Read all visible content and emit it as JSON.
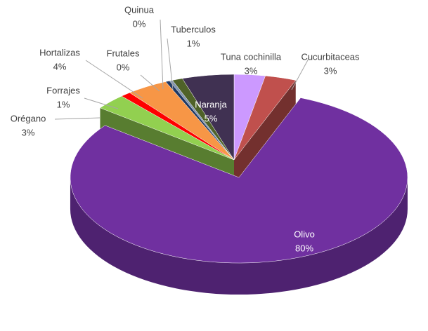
{
  "chart_data": {
    "type": "pie3d",
    "categories": [
      "Tuna cochinilla",
      "Cucurbitaceas",
      "Olivo",
      "Orégano",
      "Forrajes",
      "Hortalizas",
      "Frutales",
      "Quinua",
      "Tuberculos",
      "Naranja"
    ],
    "values": [
      3,
      3,
      80,
      3,
      1,
      4,
      0.4,
      0.3,
      1,
      5
    ],
    "value_labels": [
      "3%",
      "3%",
      "80%",
      "3%",
      "1%",
      "4%",
      "0%",
      "0%",
      "1%",
      "5%"
    ],
    "colors": [
      "#cc99ff",
      "#c0504d",
      "#7030a0",
      "#92d050",
      "#ff0000",
      "#f79646",
      "#1f3864",
      "#8496b0",
      "#4f6228",
      "#403152"
    ],
    "exploded": [
      2
    ]
  }
}
